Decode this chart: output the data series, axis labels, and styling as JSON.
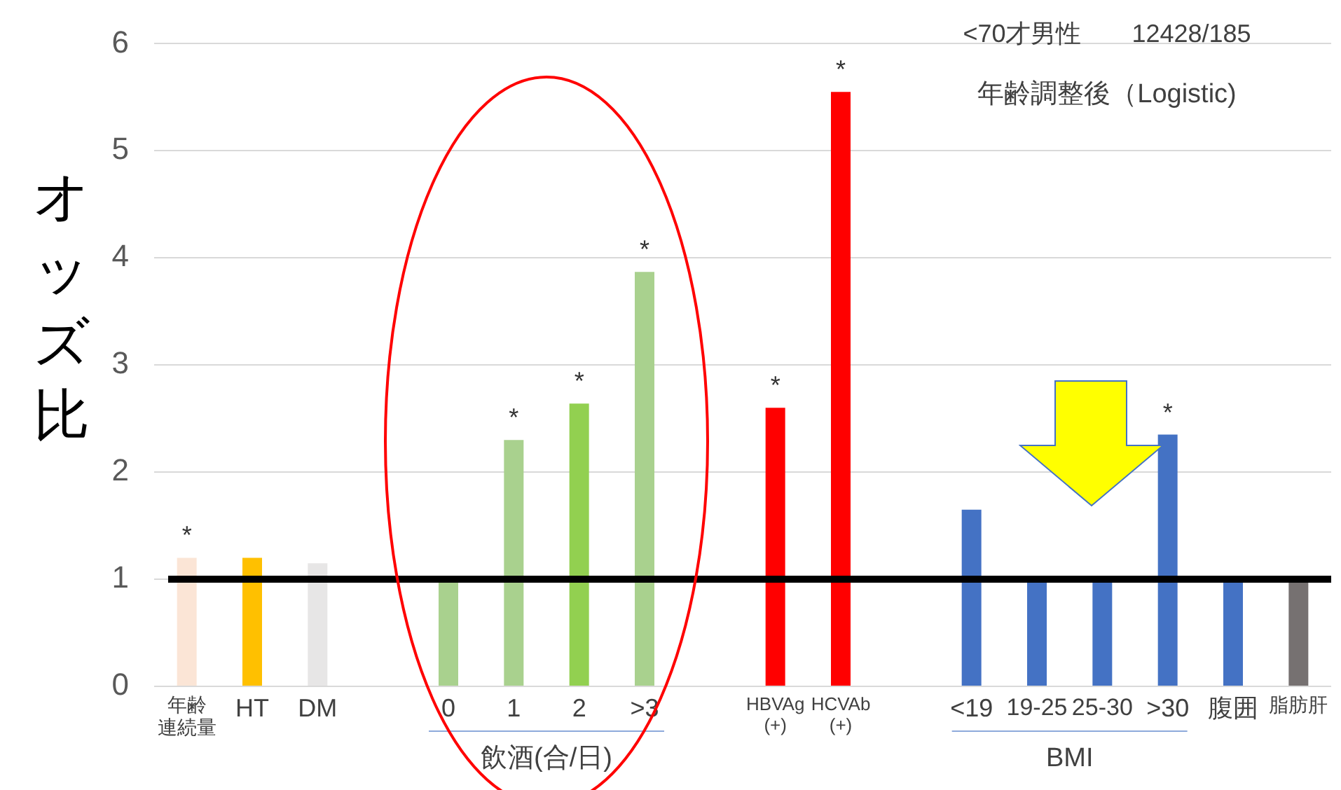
{
  "chart_data": {
    "type": "bar",
    "title": "<70才男性　　12428/185",
    "subtitle": "年齢調整後（Logistic)",
    "ylabel": "オッズ比",
    "categories": [
      "年齢連続量",
      "HT",
      "DM",
      null,
      "0",
      "1",
      "2",
      ">3",
      null,
      "HBVAg(+)",
      "HCVAb(+)",
      null,
      "<19",
      "19-25",
      "25-30",
      ">30",
      "腹囲",
      "脂肪肝"
    ],
    "values": [
      1.2,
      1.2,
      1.15,
      null,
      1.0,
      2.3,
      2.64,
      3.87,
      null,
      2.6,
      5.55,
      null,
      1.65,
      1.0,
      1.0,
      2.35,
      1.0,
      1.0
    ],
    "colors": [
      "#fbe5d6",
      "#ffc000",
      "#e7e6e6",
      null,
      "#a9d18e",
      "#a9d18e",
      "#92d050",
      "#a9d18e",
      null,
      "#ff0000",
      "#ff0000",
      null,
      "#4472c4",
      "#4472c4",
      "#4472c4",
      "#4472c4",
      "#4472c4",
      "#767171"
    ],
    "value_labels": [
      "*",
      null,
      null,
      null,
      null,
      "*",
      "*",
      "*",
      null,
      "*",
      "*",
      null,
      null,
      null,
      null,
      "*",
      null,
      null
    ],
    "ylim": [
      0,
      6
    ],
    "yticks": [
      0,
      1,
      2,
      3,
      4,
      5,
      6
    ],
    "grid": "y",
    "ref_lines": [
      {
        "axis": "y",
        "value": 1,
        "color": "#000000"
      }
    ],
    "annotations": [
      "飲酒(合/日)",
      "BMI"
    ]
  }
}
